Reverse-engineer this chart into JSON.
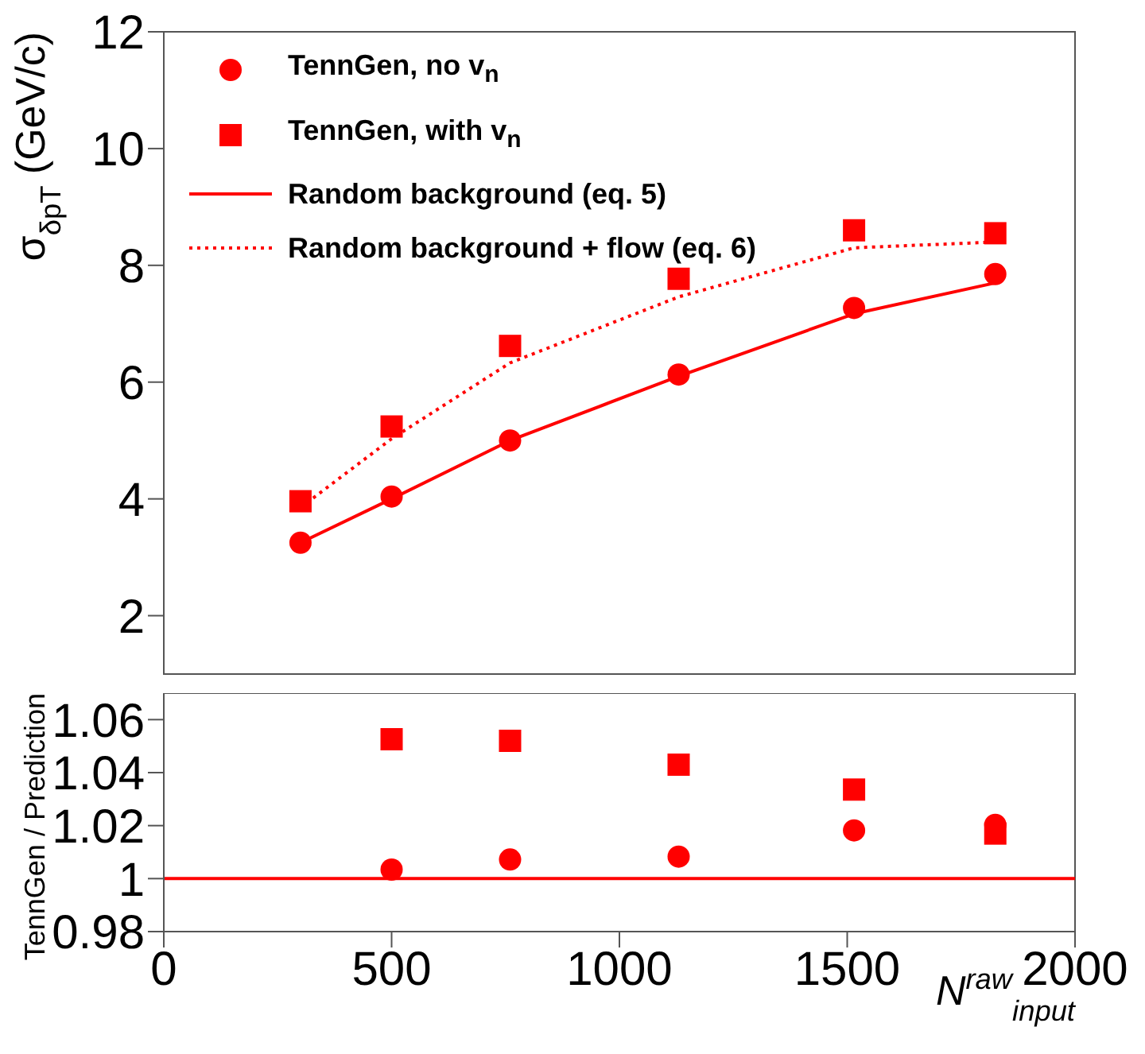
{
  "chart_data": [
    {
      "type": "scatter",
      "ylabel": "σ$_{δpT}$ (GeV/c)",
      "xlim": [
        0,
        2000
      ],
      "xticks": [
        0,
        500,
        1000,
        1500,
        2000
      ],
      "ylim": [
        1,
        12
      ],
      "yticks": [
        2,
        4,
        6,
        8,
        10,
        12
      ],
      "tick_labels": "y",
      "legend": "top left",
      "series": [
        {
          "name": "TennGen, no v$_{n}$",
          "type": "scatter",
          "marker": "circle",
          "color": "#ff0000",
          "x": [
            300,
            500,
            760,
            1130,
            1515,
            1825
          ],
          "values": [
            3.25,
            4.04,
            5.0,
            6.13,
            7.27,
            7.85
          ]
        },
        {
          "name": "TennGen, with v$_{n}$",
          "type": "scatter",
          "marker": "square",
          "color": "#ff0000",
          "x": [
            300,
            500,
            760,
            1130,
            1515,
            1825
          ],
          "values": [
            3.96,
            5.24,
            6.62,
            7.77,
            8.6,
            8.55
          ]
        },
        {
          "name": "Random background (eq. 5)",
          "type": "line",
          "line_style": "solid",
          "color": "#ff0000",
          "x": [
            300,
            500,
            760,
            1130,
            1515,
            1825
          ],
          "values": [
            3.25,
            4.0,
            5.0,
            6.1,
            7.17,
            7.7
          ]
        },
        {
          "name": "Random background + flow (eq. 6)",
          "type": "line",
          "line_style": "dotted",
          "color": "#ff0000",
          "x": [
            300,
            500,
            760,
            1130,
            1515,
            1825
          ],
          "values": [
            3.85,
            5.03,
            6.33,
            7.46,
            8.3,
            8.4
          ]
        }
      ]
    },
    {
      "type": "scatter",
      "ylabel": "TennGen / Prediction",
      "xlabel": "N$^{raw}$$_{input}$",
      "xlim": [
        0,
        2000
      ],
      "xticks": [
        0,
        500,
        1000,
        1500,
        2000
      ],
      "ylim": [
        0.98,
        1.07
      ],
      "yticks": [
        0.98,
        1,
        1.02,
        1.04,
        1.06
      ],
      "ref_lines": [
        {
          "axis": "y",
          "value": 1,
          "color": "#ff0000"
        }
      ],
      "series": [
        {
          "type": "scatter",
          "marker": "circle",
          "color": "#ff0000",
          "x": [
            500,
            760,
            1130,
            1515,
            1825
          ],
          "values": [
            1.0034,
            1.0072,
            1.0083,
            1.0182,
            1.0203
          ]
        },
        {
          "type": "scatter",
          "marker": "square",
          "color": "#ff0000",
          "x": [
            500,
            760,
            1130,
            1515,
            1825
          ],
          "values": [
            1.0526,
            1.052,
            1.043,
            1.0336,
            1.017
          ]
        }
      ]
    }
  ]
}
